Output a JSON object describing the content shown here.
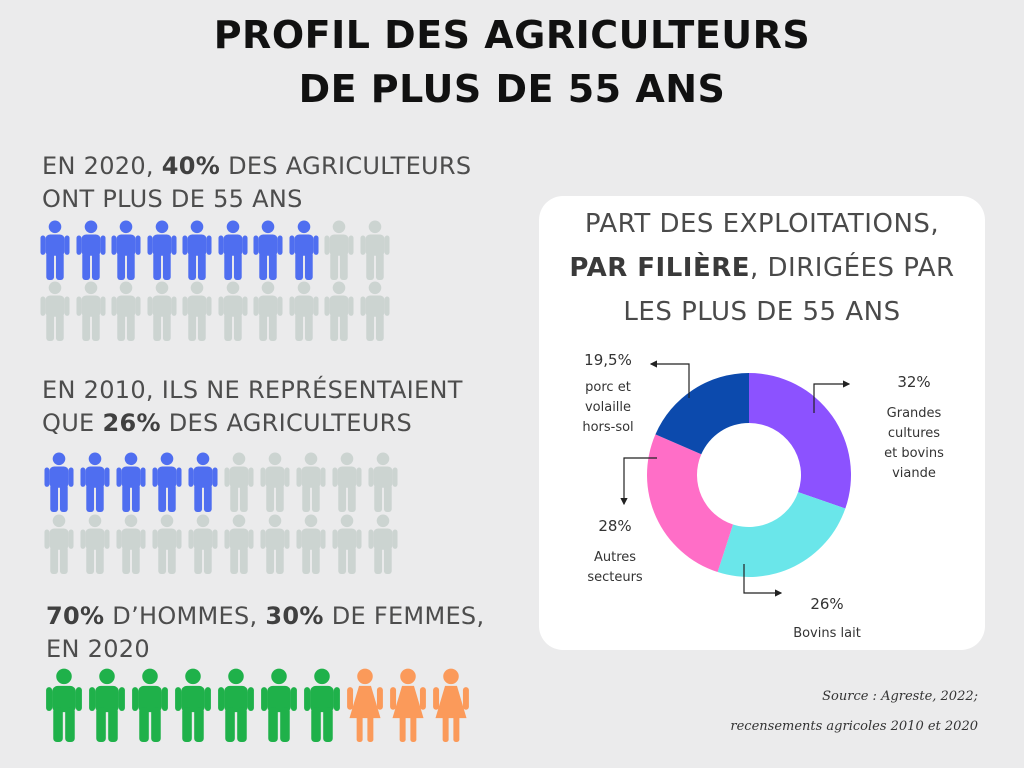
{
  "title": {
    "line1": "PROFIL DES AGRICULTEURS",
    "line2": "DE PLUS DE 55 ANS"
  },
  "stat2020": {
    "prefix": "EN 2020, ",
    "value": "40%",
    "suffix": " DES AGRICULTEURS",
    "line2": "ONT PLUS DE 55 ANS"
  },
  "stat2010": {
    "line1": "EN 2010, ILS NE REPRÉSENTAIENT",
    "prefix": "QUE ",
    "value": "26%",
    "suffix": " DES AGRICULTEURS"
  },
  "gender": {
    "men_value": "70%",
    "men_text": " D’HOMMES, ",
    "women_value": "30%",
    "women_text": " DE FEMMES,",
    "line2": "EN 2020"
  },
  "colors": {
    "highlight_blue": "#4f6ef0",
    "neutral_gray": "#ccd4d1",
    "men_green": "#1fb14a",
    "women_orange": "#fb9a5a"
  },
  "pictograms": {
    "over55_2020": {
      "total": 20,
      "highlighted": 8
    },
    "over55_2010": {
      "total": 20,
      "highlighted": 5
    },
    "gender_2020": {
      "total": 10,
      "men": 7,
      "women": 3
    }
  },
  "card": {
    "title_line1": "PART DES EXPLOITATIONS,",
    "title_bold": "PAR FILIÈRE",
    "title_rest": ", DIRIGÉES PAR",
    "title_line3": "LES PLUS DE 55 ANS"
  },
  "chart_data": {
    "type": "pie",
    "title": "PART DES EXPLOITATIONS, PAR FILIÈRE, DIRIGÉES PAR LES PLUS DE 55 ANS",
    "slices": [
      {
        "label": "Grandes cultures et bovins viande",
        "value": 32,
        "value_label": "32%",
        "color": "#8c52ff"
      },
      {
        "label": "Bovins lait",
        "value": 26,
        "value_label": "26%",
        "color": "#6ae6ea"
      },
      {
        "label": "Autres secteurs",
        "value": 28,
        "value_label": "28%",
        "color": "#ff6ec7"
      },
      {
        "label": "porc et volaille hors-sol",
        "value": 19.5,
        "value_label": "19,5%",
        "color": "#0c4aad"
      }
    ]
  },
  "pie_labels": {
    "grandes_pct": "32%",
    "grandes_l1": "Grandes",
    "grandes_l2": "cultures",
    "grandes_l3": "et bovins",
    "grandes_l4": "viande",
    "lait_pct": "26%",
    "lait_l1": "Bovins lait",
    "autres_pct": "28%",
    "autres_l1": "Autres",
    "autres_l2": "secteurs",
    "porc_pct": "19,5%",
    "porc_l1": "porc et",
    "porc_l2": "volaille",
    "porc_l3": "hors-sol"
  },
  "source": {
    "line1": "Source : Agreste, 2022;",
    "line2": "recensements agricoles 2010 et 2020"
  }
}
